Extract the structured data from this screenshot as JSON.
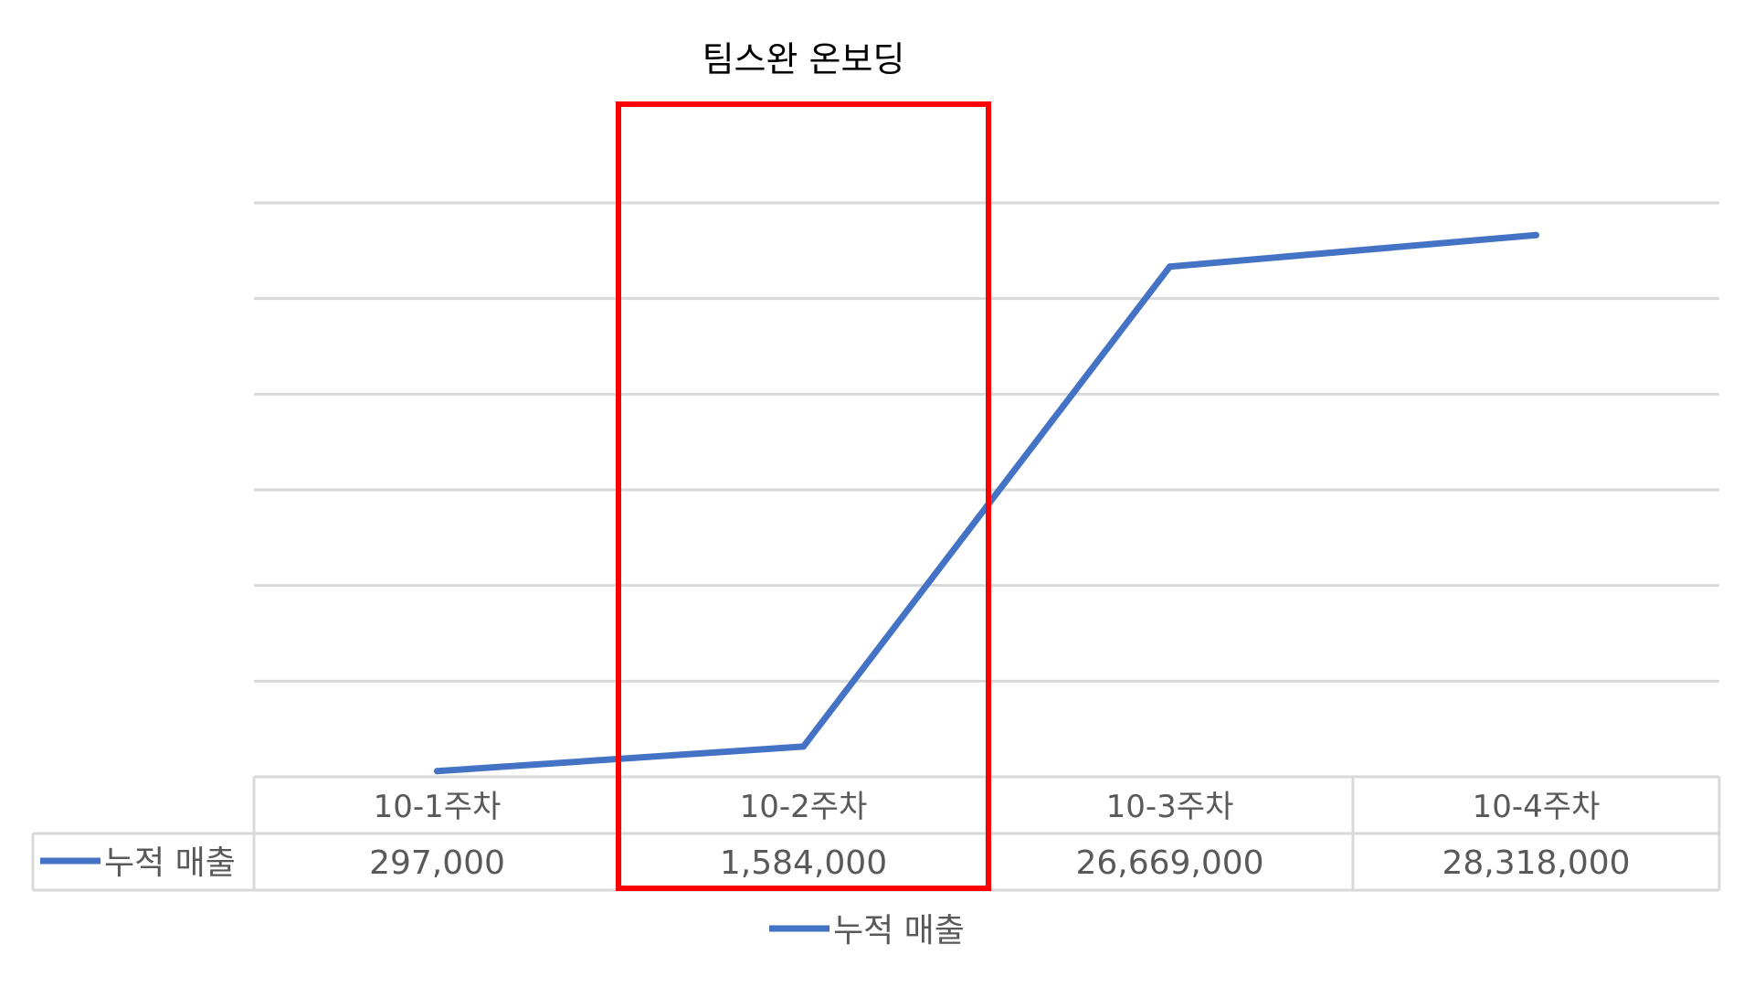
{
  "chart_data": {
    "type": "line",
    "categories": [
      "10-1주차",
      "10-2주차",
      "10-3주차",
      "10-4주차"
    ],
    "series": [
      {
        "name": "누적 매출",
        "values": [
          297000,
          1584000,
          26669000,
          28318000
        ],
        "labels": [
          "297,000",
          "1,584,000",
          "26,669,000",
          "28,318,000"
        ],
        "color": "#4472c4"
      }
    ],
    "ylim": [
      0,
      30000000
    ],
    "grid": true,
    "legend": "bottom",
    "data_table": true,
    "annotation": {
      "text": "팀스완 온보딩",
      "category": "10-2주차",
      "color": "#ff0000"
    }
  }
}
